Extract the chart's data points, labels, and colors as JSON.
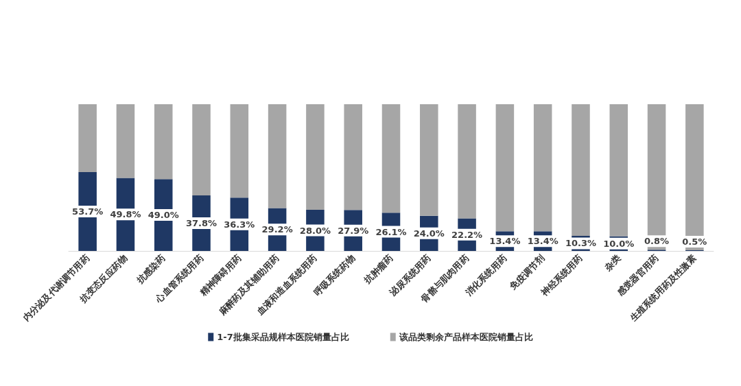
{
  "chart_data": {
    "type": "bar",
    "stacked": true,
    "ylim": [
      0,
      100
    ],
    "tick_labels": "x",
    "grid": false,
    "legend": "bottom",
    "categories": [
      "内分泌及代谢调节用药",
      "抗变态反应药物",
      "抗感染药",
      "心血管系统用药",
      "精神障碍用药",
      "麻醉药及其辅助用药",
      "血液和造血系统用药",
      "呼吸系统药物",
      "抗肿瘤药",
      "泌尿系统用药",
      "骨骼与肌肉用药",
      "消化系统用药",
      "免疫调节剂",
      "神经系统用药",
      "杂类",
      "感觉器官用药",
      "生殖系统用药及性激素"
    ],
    "series": [
      {
        "name": "1-7批集采品规样本医院销量占比",
        "color": "#1f3864",
        "values": [
          53.7,
          49.8,
          49.0,
          37.8,
          36.3,
          29.2,
          28.0,
          27.9,
          26.1,
          24.0,
          22.2,
          13.4,
          13.4,
          10.3,
          10.0,
          0.8,
          0.5
        ],
        "value_labels": [
          "53.7%",
          "49.8%",
          "49.0%",
          "37.8%",
          "36.3%",
          "29.2%",
          "28.0%",
          "27.9%",
          "26.1%",
          "24.0%",
          "22.2%",
          "13.4%",
          "13.4%",
          "10.3%",
          "10.0%",
          "0.8%",
          "0.5%"
        ]
      },
      {
        "name": "该品类剩余产品样本医院销量占比",
        "color": "#a6a6a6",
        "values": [
          46.3,
          50.2,
          51.0,
          62.2,
          63.7,
          70.8,
          72.0,
          72.1,
          73.9,
          76.0,
          77.8,
          86.6,
          86.6,
          89.7,
          90.0,
          99.2,
          99.5
        ]
      }
    ]
  }
}
